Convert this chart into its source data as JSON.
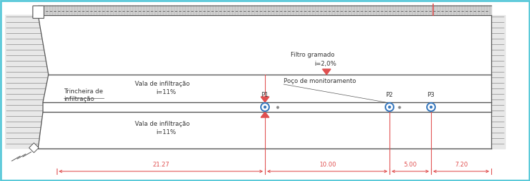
{
  "bg_color": "#ffffff",
  "cyan_border": "#56c8d8",
  "line_color": "#888888",
  "line_dark": "#555555",
  "red_color": "#e05050",
  "blue_circle_color": "#3a7abf",
  "hatch_light": "#cccccc",
  "fill_white": "#ffffff",
  "filtro_gramado_label": "Filtro gramado",
  "filtro_gramado_slope": "i=2,0%",
  "vala_infiltracao_label": "Vala de infiltração",
  "vala_slope": "i=11%",
  "poco_label": "Poço de monitoramento",
  "trincheira_label": "Trincheira de\ninfiltração",
  "p1_label": "P1",
  "p2_label": "P2",
  "p3_label": "P3",
  "dim_21_27": "21.27",
  "dim_10_00": "10.00",
  "dim_5_00": "5.00",
  "dim_7_20": "7.20",
  "fig_width": 7.66,
  "fig_height": 2.62,
  "dpi": 100
}
